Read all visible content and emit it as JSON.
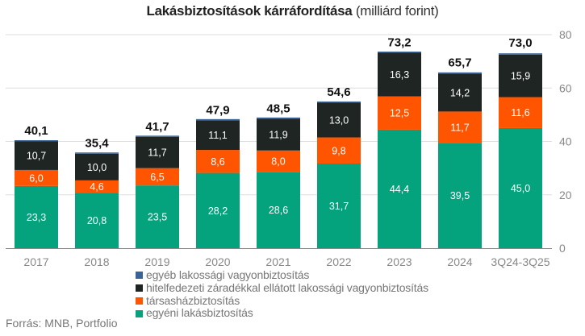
{
  "chart_data": {
    "type": "bar",
    "stacked": true,
    "title": "Lakásbiztosítások kárráfordítása",
    "subtitle": "(milliárd forint)",
    "xlabel": "",
    "ylabel": "",
    "ylim": [
      0,
      80
    ],
    "yticks": [
      0,
      20,
      40,
      60,
      80
    ],
    "ytick_labels": [
      "0",
      "20",
      "40",
      "60",
      "80"
    ],
    "grid": true,
    "y_axis_position": "right",
    "legend_position": "bottom",
    "categories": [
      "2017",
      "2018",
      "2019",
      "2020",
      "2021",
      "2022",
      "2023",
      "2024",
      "3Q24-3Q25"
    ],
    "totals": [
      40.1,
      35.4,
      41.7,
      47.9,
      48.5,
      54.6,
      73.2,
      65.7,
      73.0
    ],
    "total_labels": [
      "40,1",
      "35,4",
      "41,7",
      "47,9",
      "48,5",
      "54,6",
      "73,2",
      "65,7",
      "73,0"
    ],
    "series": [
      {
        "name": "egyéni lakásbiztosítás",
        "color": "#04a37d",
        "values": [
          23.3,
          20.8,
          23.5,
          28.2,
          28.6,
          31.7,
          44.4,
          39.5,
          45.0
        ],
        "labels": [
          "23,3",
          "20,8",
          "23,5",
          "28,2",
          "28,6",
          "31,7",
          "44,4",
          "39,5",
          "45,0"
        ]
      },
      {
        "name": "társasházbiztosítás",
        "color": "#ff5400",
        "values": [
          6.0,
          4.6,
          6.5,
          8.6,
          8.0,
          9.8,
          12.5,
          11.7,
          11.6
        ],
        "labels": [
          "6,0",
          "4,6",
          "6,5",
          "8,6",
          "8,0",
          "9,8",
          "12,5",
          "11,7",
          "11,6"
        ]
      },
      {
        "name": "hitelfedezeti záradékkal ellátott lakossági vagyonbiztosítás",
        "color": "#1f2523",
        "values": [
          10.7,
          10.0,
          11.7,
          11.1,
          11.9,
          13.0,
          16.3,
          14.2,
          15.9
        ],
        "labels": [
          "10,7",
          "10,0",
          "11,7",
          "11,1",
          "11,9",
          "13,0",
          "16,3",
          "14,2",
          "15,9"
        ]
      },
      {
        "name": "egyéb lakossági vagyonbiztosítás",
        "color": "#3b6496",
        "values": [
          0.1,
          0.1,
          0.1,
          0.1,
          0.1,
          0.1,
          0.1,
          0.3,
          0.5
        ],
        "labels": null
      }
    ],
    "legend_order": [
      "egyéb lakossági vagyonbiztosítás",
      "hitelfedezeti záradékkal ellátott lakossági vagyonbiztosítás",
      "társasházbiztosítás",
      "egyéni lakásbiztosítás"
    ],
    "source": "Forrás: MNB, Portfolio"
  }
}
